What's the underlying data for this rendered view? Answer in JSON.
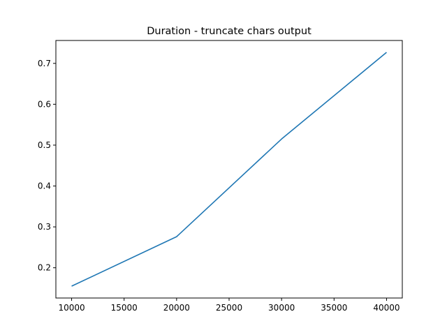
{
  "chart_data": {
    "type": "line",
    "title": "Duration - truncate chars output",
    "xlabel": "",
    "ylabel": "",
    "x": [
      10000,
      20000,
      30000,
      40000
    ],
    "series": [
      {
        "values": [
          0.155,
          0.276,
          0.515,
          0.727
        ],
        "color": "#1f77b4"
      }
    ],
    "xlim": [
      8500,
      41500
    ],
    "ylim": [
      0.126,
      0.756
    ],
    "xticks": [
      10000,
      15000,
      20000,
      25000,
      30000,
      35000,
      40000
    ],
    "xtick_labels": [
      "10000",
      "15000",
      "20000",
      "25000",
      "30000",
      "35000",
      "40000"
    ],
    "yticks": [
      0.2,
      0.3,
      0.4,
      0.5,
      0.6,
      0.7
    ],
    "ytick_labels": [
      "0.2",
      "0.3",
      "0.4",
      "0.5",
      "0.6",
      "0.7"
    ],
    "grid": false,
    "legend": "none"
  }
}
